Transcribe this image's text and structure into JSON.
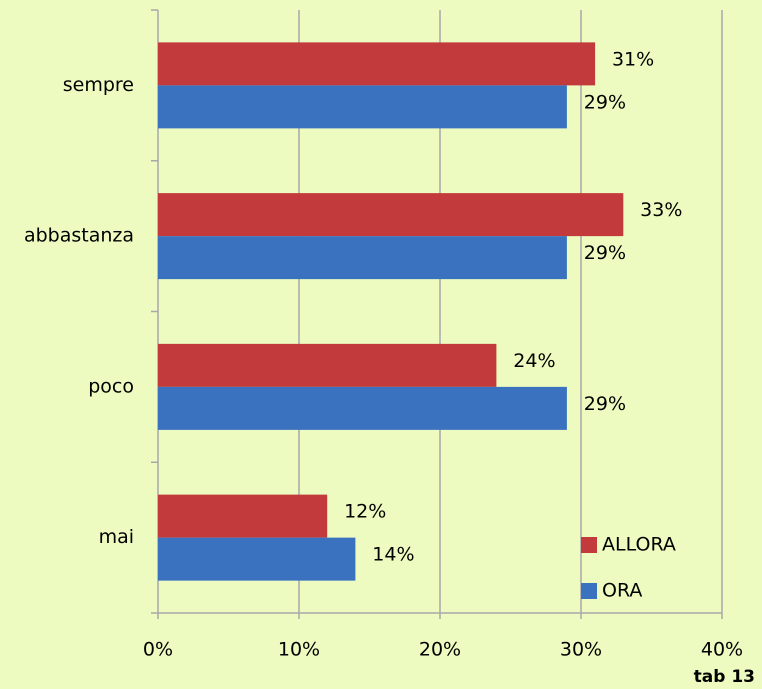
{
  "chart_data": {
    "type": "bar",
    "orientation": "horizontal",
    "categories": [
      "sempre",
      "abbastanza",
      "poco",
      "mai"
    ],
    "series": [
      {
        "name": "ALLORA",
        "color": "#c33a3c",
        "values": [
          31,
          33,
          24,
          12
        ],
        "value_labels": [
          "31%",
          "33%",
          "24%",
          "12%"
        ]
      },
      {
        "name": "ORA",
        "color": "#3b72bf",
        "values": [
          29,
          29,
          29,
          14
        ],
        "value_labels": [
          "29%",
          "29%",
          "29%",
          "14%"
        ]
      }
    ],
    "xlim": [
      0,
      40
    ],
    "xticks": [
      {
        "value": 0,
        "label": "0%"
      },
      {
        "value": 10,
        "label": "10%"
      },
      {
        "value": 20,
        "label": "20%"
      },
      {
        "value": 30,
        "label": "30%"
      },
      {
        "value": 40,
        "label": "40%"
      }
    ],
    "grid": true,
    "legend": "lower right",
    "annotation": "tab 13"
  }
}
